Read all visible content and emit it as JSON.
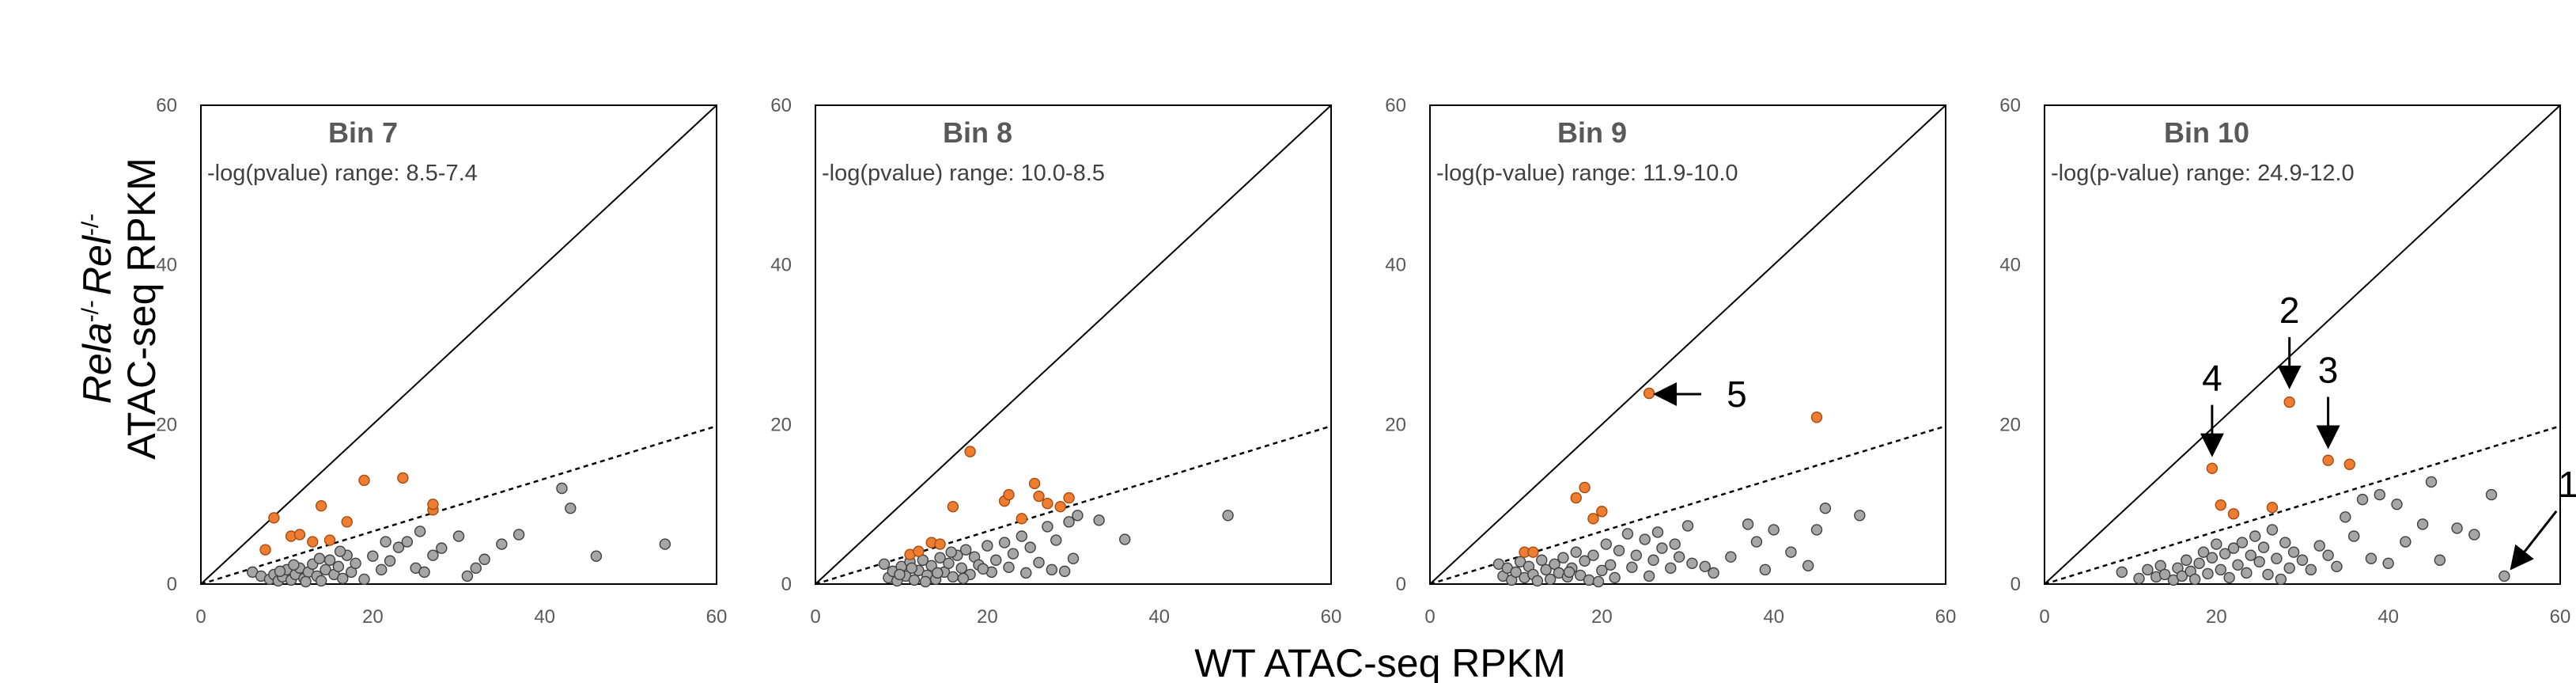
{
  "colors": {
    "hit": "#ED7D31",
    "hit_stroke": "#A84B10",
    "background_points": "#A6A6A6",
    "background_stroke": "#3F3F3F",
    "axis": "#000000"
  },
  "figure": {
    "ylabel_italic": "Rela",
    "ylabel_sup1": "-/-",
    "ylabel_italic2": "Rel",
    "ylabel_sup2": "-/-",
    "ylabel_line2": "ATAC-seq RPKM",
    "xlabel": "WT ATAC-seq RPKM"
  },
  "chart_data": [
    {
      "type": "scatter",
      "title": "Bin 7",
      "range_label": "-log(pvalue) range: 8.5-7.4",
      "xlim": [
        0,
        60
      ],
      "ylim": [
        0,
        60
      ],
      "xticks": [
        "0",
        "20",
        "40",
        "60"
      ],
      "yticks": [
        "0",
        "20",
        "40",
        "60"
      ],
      "reference_lines": [
        {
          "name": "identity",
          "slope": 1.0,
          "style": "solid"
        },
        {
          "name": "cutoff",
          "slope": 0.33,
          "style": "dashed"
        }
      ],
      "highlighted": [
        [
          7.5,
          4.3
        ],
        [
          8.5,
          8.3
        ],
        [
          10.5,
          6.0
        ],
        [
          11.5,
          6.2
        ],
        [
          13,
          5.3
        ],
        [
          14,
          9.8
        ],
        [
          15,
          5.5
        ],
        [
          17,
          7.8
        ],
        [
          19,
          13.0
        ],
        [
          23.5,
          13.3
        ],
        [
          27,
          9.3
        ],
        [
          27,
          10.0
        ]
      ],
      "background": [
        [
          6,
          1.5
        ],
        [
          7,
          1
        ],
        [
          8,
          0.6
        ],
        [
          8.5,
          1.2
        ],
        [
          9,
          0.4
        ],
        [
          9.5,
          0.9
        ],
        [
          10,
          1.8
        ],
        [
          10.5,
          0.5
        ],
        [
          11,
          1.2
        ],
        [
          11.5,
          2.0
        ],
        [
          12,
          0.7
        ],
        [
          12.5,
          1.5
        ],
        [
          13,
          2.5
        ],
        [
          13.5,
          1.0
        ],
        [
          14,
          0.4
        ],
        [
          14.5,
          1.8
        ],
        [
          15,
          3.0
        ],
        [
          15.5,
          1.2
        ],
        [
          16,
          2.2
        ],
        [
          16.5,
          0.7
        ],
        [
          17,
          3.6
        ],
        [
          17.5,
          1.5
        ],
        [
          18,
          2.6
        ],
        [
          19,
          0.6
        ],
        [
          20,
          3.5
        ],
        [
          21,
          1.8
        ],
        [
          21.5,
          5.3
        ],
        [
          22,
          2.9
        ],
        [
          23,
          4.6
        ],
        [
          24,
          5.3
        ],
        [
          25,
          2.0
        ],
        [
          25.5,
          6.6
        ],
        [
          26,
          1.5
        ],
        [
          27,
          3.6
        ],
        [
          28,
          4.5
        ],
        [
          30,
          6.0
        ],
        [
          31,
          1.0
        ],
        [
          32,
          2.0
        ],
        [
          33,
          3.1
        ],
        [
          35,
          5.0
        ],
        [
          37,
          6.2
        ],
        [
          42,
          12.0
        ],
        [
          43,
          9.5
        ],
        [
          46,
          3.5
        ],
        [
          54,
          5.0
        ],
        [
          9.2,
          1.6
        ],
        [
          10.8,
          2.4
        ],
        [
          12.2,
          0.3
        ],
        [
          13.8,
          3.2
        ],
        [
          16.2,
          4.1
        ]
      ]
    },
    {
      "type": "scatter",
      "title": "Bin 8",
      "range_label": "-log(pvalue) range: 10.0-8.5",
      "xlim": [
        0,
        60
      ],
      "ylim": [
        0,
        60
      ],
      "xticks": [
        "0",
        "20",
        "40",
        "60"
      ],
      "yticks": [
        "0",
        "20",
        "40",
        "60"
      ],
      "reference_lines": [
        {
          "name": "identity",
          "slope": 1.0,
          "style": "solid"
        },
        {
          "name": "cutoff",
          "slope": 0.33,
          "style": "dashed"
        }
      ],
      "highlighted": [
        [
          11,
          3.7
        ],
        [
          12,
          4.1
        ],
        [
          13.5,
          5.2
        ],
        [
          14.5,
          5.0
        ],
        [
          16,
          9.7
        ],
        [
          18,
          16.6
        ],
        [
          22,
          10.4
        ],
        [
          22.5,
          11.2
        ],
        [
          24,
          8.2
        ],
        [
          25.5,
          12.6
        ],
        [
          26,
          11.0
        ],
        [
          27,
          10.1
        ],
        [
          28.5,
          9.7
        ],
        [
          29.5,
          10.8
        ]
      ],
      "background": [
        [
          8,
          2.5
        ],
        [
          8.5,
          0.8
        ],
        [
          9,
          1.6
        ],
        [
          9.5,
          0.4
        ],
        [
          10,
          2.2
        ],
        [
          10.5,
          1.0
        ],
        [
          11,
          2.8
        ],
        [
          11.5,
          0.5
        ],
        [
          12,
          1.7
        ],
        [
          12.5,
          3.0
        ],
        [
          13,
          1.1
        ],
        [
          13.5,
          2.3
        ],
        [
          14,
          0.6
        ],
        [
          14.5,
          3.3
        ],
        [
          15,
          1.5
        ],
        [
          15.5,
          2.6
        ],
        [
          16,
          0.9
        ],
        [
          16.5,
          3.6
        ],
        [
          17,
          2.0
        ],
        [
          17.5,
          4.3
        ],
        [
          18,
          1.2
        ],
        [
          18.5,
          3.4
        ],
        [
          19,
          2.4
        ],
        [
          20,
          4.8
        ],
        [
          20.5,
          1.5
        ],
        [
          21,
          3.0
        ],
        [
          22,
          5.2
        ],
        [
          22.5,
          2.1
        ],
        [
          23,
          3.8
        ],
        [
          24,
          6.0
        ],
        [
          24.5,
          1.4
        ],
        [
          25,
          4.6
        ],
        [
          26,
          2.7
        ],
        [
          27,
          7.2
        ],
        [
          27.5,
          1.8
        ],
        [
          28,
          5.5
        ],
        [
          29,
          1.6
        ],
        [
          29.5,
          7.8
        ],
        [
          30,
          3.2
        ],
        [
          30.5,
          8.6
        ],
        [
          33,
          8.0
        ],
        [
          36,
          5.6
        ],
        [
          48,
          8.6
        ],
        [
          9.8,
          1.2
        ],
        [
          11.2,
          2.0
        ],
        [
          12.8,
          0.3
        ],
        [
          14.2,
          1.4
        ],
        [
          15.8,
          4.0
        ],
        [
          17.2,
          0.7
        ],
        [
          19.5,
          1.9
        ]
      ]
    },
    {
      "type": "scatter",
      "title": "Bin 9",
      "range_label": "-log(p-value) range: 11.9-10.0",
      "xlim": [
        0,
        60
      ],
      "ylim": [
        0,
        60
      ],
      "xticks": [
        "0",
        "20",
        "40",
        "60"
      ],
      "yticks": [
        "0",
        "20",
        "40",
        "60"
      ],
      "reference_lines": [
        {
          "name": "identity",
          "slope": 1.0,
          "style": "solid"
        },
        {
          "name": "cutoff",
          "slope": 0.33,
          "style": "dashed"
        }
      ],
      "highlighted": [
        [
          11,
          4.0
        ],
        [
          12,
          4.0
        ],
        [
          17,
          10.8
        ],
        [
          18,
          12.1
        ],
        [
          19,
          8.2
        ],
        [
          20,
          9.1
        ],
        [
          25.5,
          23.9
        ],
        [
          45,
          20.9
        ]
      ],
      "background": [
        [
          8,
          2.5
        ],
        [
          8.5,
          1.0
        ],
        [
          9,
          2.0
        ],
        [
          9.5,
          0.5
        ],
        [
          10,
          1.5
        ],
        [
          10.5,
          2.8
        ],
        [
          11,
          0.8
        ],
        [
          11.5,
          2.2
        ],
        [
          12,
          1.2
        ],
        [
          12.5,
          0.4
        ],
        [
          13,
          3.0
        ],
        [
          13.5,
          1.8
        ],
        [
          14,
          0.6
        ],
        [
          14.5,
          2.5
        ],
        [
          15,
          1.4
        ],
        [
          15.5,
          3.3
        ],
        [
          16,
          0.9
        ],
        [
          16.5,
          2.0
        ],
        [
          17,
          4.0
        ],
        [
          17.5,
          1.1
        ],
        [
          18,
          2.9
        ],
        [
          18.5,
          0.5
        ],
        [
          19,
          3.6
        ],
        [
          20,
          1.7
        ],
        [
          20.5,
          5.0
        ],
        [
          21,
          2.4
        ],
        [
          21.5,
          0.8
        ],
        [
          22,
          4.2
        ],
        [
          23,
          6.3
        ],
        [
          23.5,
          2.1
        ],
        [
          24,
          3.6
        ],
        [
          25,
          5.6
        ],
        [
          25.5,
          1.0
        ],
        [
          26,
          3.0
        ],
        [
          26.5,
          6.5
        ],
        [
          27,
          4.5
        ],
        [
          28,
          2.0
        ],
        [
          28.5,
          5.0
        ],
        [
          29,
          3.4
        ],
        [
          30,
          7.3
        ],
        [
          30.5,
          2.6
        ],
        [
          32,
          2.2
        ],
        [
          33,
          1.4
        ],
        [
          35,
          3.4
        ],
        [
          37,
          7.5
        ],
        [
          38,
          5.3
        ],
        [
          39,
          1.8
        ],
        [
          40,
          6.8
        ],
        [
          42,
          4.0
        ],
        [
          44,
          2.3
        ],
        [
          45,
          6.8
        ],
        [
          46,
          9.5
        ],
        [
          50,
          8.6
        ],
        [
          16.2,
          1.5
        ],
        [
          19.6,
          0.3
        ]
      ]
    },
    {
      "type": "scatter",
      "title": "Bin 10",
      "range_label": "-log(p-value) range: 24.9-12.0",
      "xlim": [
        0,
        60
      ],
      "ylim": [
        0,
        60
      ],
      "xticks": [
        "0",
        "20",
        "40",
        "60"
      ],
      "yticks": [
        "0",
        "20",
        "40",
        "60"
      ],
      "reference_lines": [
        {
          "name": "identity",
          "slope": 1.0,
          "style": "solid"
        },
        {
          "name": "cutoff",
          "slope": 0.33,
          "style": "dashed"
        }
      ],
      "highlighted": [
        [
          19.5,
          14.5
        ],
        [
          20.5,
          9.9
        ],
        [
          22,
          8.8
        ],
        [
          26.5,
          9.6
        ],
        [
          28.5,
          22.8
        ],
        [
          33,
          15.5
        ],
        [
          35.5,
          15.0
        ]
      ],
      "background": [
        [
          9,
          1.5
        ],
        [
          11,
          0.7
        ],
        [
          12,
          1.8
        ],
        [
          13,
          0.9
        ],
        [
          13.5,
          2.3
        ],
        [
          14,
          1.2
        ],
        [
          15,
          0.5
        ],
        [
          15.5,
          2.0
        ],
        [
          16,
          1.0
        ],
        [
          16.5,
          3.0
        ],
        [
          17,
          1.6
        ],
        [
          17.5,
          0.6
        ],
        [
          18,
          2.6
        ],
        [
          18.5,
          4.0
        ],
        [
          19,
          1.3
        ],
        [
          19.5,
          3.3
        ],
        [
          20,
          5.0
        ],
        [
          20.5,
          1.8
        ],
        [
          21,
          3.8
        ],
        [
          21.5,
          0.8
        ],
        [
          22,
          4.5
        ],
        [
          22.5,
          2.4
        ],
        [
          23,
          5.2
        ],
        [
          23.5,
          1.4
        ],
        [
          24,
          3.6
        ],
        [
          24.5,
          6.0
        ],
        [
          25,
          2.8
        ],
        [
          25.5,
          4.6
        ],
        [
          26,
          1.2
        ],
        [
          26.5,
          6.8
        ],
        [
          27,
          3.2
        ],
        [
          27.5,
          0.6
        ],
        [
          28,
          5.2
        ],
        [
          28.5,
          2.0
        ],
        [
          29,
          4.0
        ],
        [
          30,
          3.0
        ],
        [
          31,
          1.8
        ],
        [
          32,
          4.8
        ],
        [
          33,
          3.6
        ],
        [
          34,
          2.2
        ],
        [
          35,
          8.4
        ],
        [
          36,
          6.0
        ],
        [
          37,
          10.6
        ],
        [
          38,
          3.2
        ],
        [
          39,
          11.2
        ],
        [
          40,
          2.6
        ],
        [
          41,
          10.0
        ],
        [
          42,
          5.3
        ],
        [
          44,
          7.5
        ],
        [
          45,
          12.8
        ],
        [
          46,
          3.0
        ],
        [
          48,
          7.0
        ],
        [
          50,
          6.2
        ],
        [
          52,
          11.2
        ],
        [
          53.5,
          1.0
        ]
      ]
    }
  ],
  "annotations": [
    {
      "panel": 2,
      "label": "5",
      "tip": [
        26.5,
        23.8
      ],
      "direction": "left"
    },
    {
      "panel": 3,
      "label": "4",
      "tip": [
        19.5,
        16.5
      ],
      "direction": "down"
    },
    {
      "panel": 3,
      "label": "2",
      "tip": [
        28.5,
        25.0
      ],
      "direction": "down"
    },
    {
      "panel": 3,
      "label": "3",
      "tip": [
        33.0,
        17.5
      ],
      "direction": "down"
    },
    {
      "panel": 3,
      "label": "1",
      "tip": [
        54.5,
        2.2
      ],
      "direction": "down-left"
    }
  ]
}
